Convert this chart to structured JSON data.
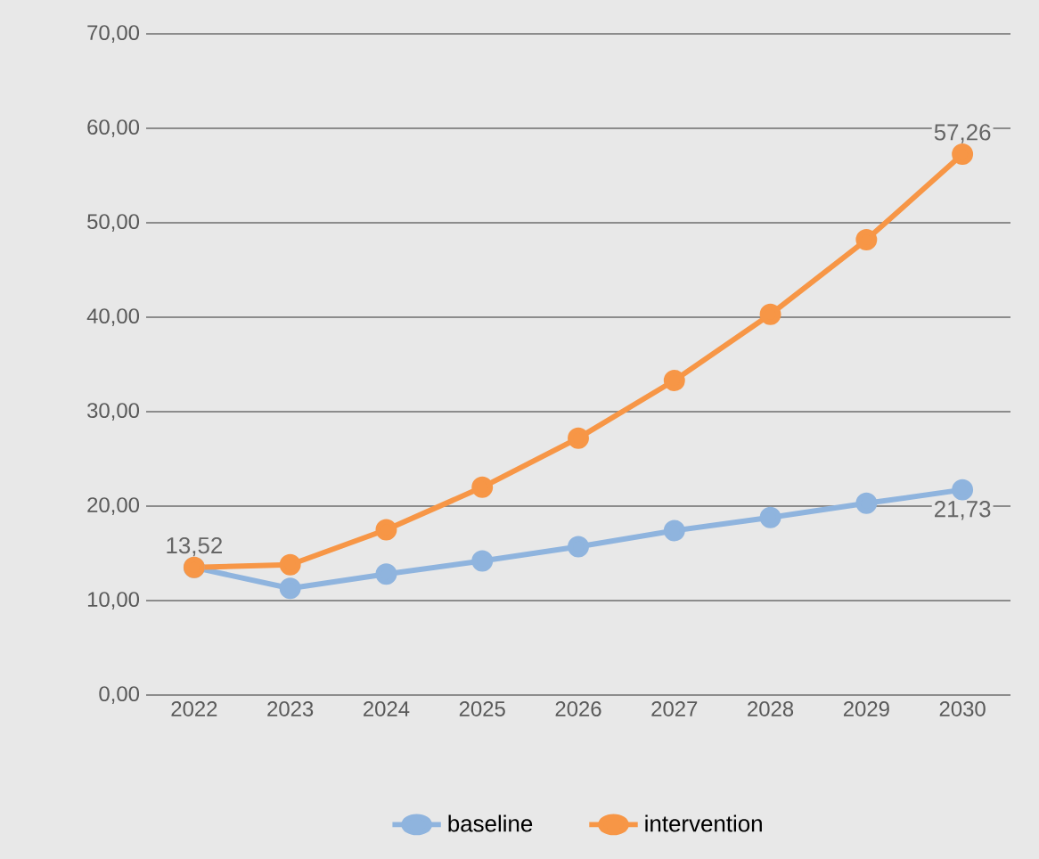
{
  "chart_data": {
    "type": "line",
    "categories": [
      "2022",
      "2023",
      "2024",
      "2025",
      "2026",
      "2027",
      "2028",
      "2029",
      "2030"
    ],
    "series": [
      {
        "name": "baseline",
        "color": "#8fb4de",
        "values": [
          13.5,
          11.3,
          12.8,
          14.2,
          15.7,
          17.4,
          18.8,
          20.3,
          21.73
        ],
        "value_labels": [
          null,
          null,
          null,
          null,
          null,
          null,
          null,
          null,
          "21,73"
        ]
      },
      {
        "name": "intervention",
        "color": "#f79646",
        "values": [
          13.52,
          13.8,
          17.5,
          22.0,
          27.2,
          33.3,
          40.3,
          48.2,
          57.26
        ],
        "value_labels": [
          "13,52",
          null,
          null,
          null,
          null,
          null,
          null,
          null,
          "57,26"
        ]
      }
    ],
    "ylim": [
      0,
      70
    ],
    "yticks": [
      {
        "value": 0,
        "label": "0,00"
      },
      {
        "value": 10,
        "label": "10,00"
      },
      {
        "value": 20,
        "label": "20,00"
      },
      {
        "value": 30,
        "label": "30,00"
      },
      {
        "value": 40,
        "label": "40,00"
      },
      {
        "value": 50,
        "label": "50,00"
      },
      {
        "value": 60,
        "label": "60,00"
      },
      {
        "value": 70,
        "label": "70,00"
      }
    ],
    "grid": "y",
    "legend": "bottom",
    "marker": "circle",
    "line_style": "solid"
  }
}
